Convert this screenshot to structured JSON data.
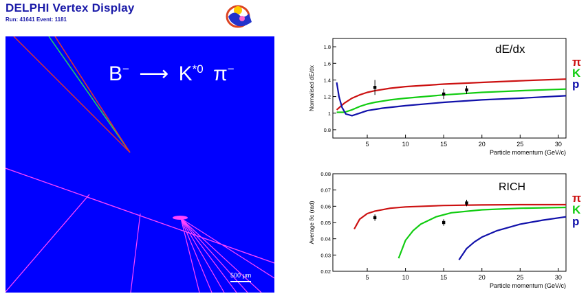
{
  "header": {
    "title": "DELPHI Vertex Display",
    "run_label": "Run:",
    "run_value": "41641",
    "event_label": "Event:",
    "event_value": "1181"
  },
  "event_display": {
    "decay_parts": {
      "B": "B",
      "B_sup": "−",
      "arrow": "⟶",
      "K": "K",
      "K_sup": "*0",
      "pi": "π",
      "pi_sup": "−"
    },
    "scale_label": "500 µm",
    "background_color": "#0000ff"
  },
  "legend": {
    "pi": "π",
    "K": "K",
    "p": "p",
    "colors": {
      "pi": "#cc1111",
      "K": "#11cc11",
      "p": "#1111aa"
    }
  },
  "chart_data": [
    {
      "type": "line",
      "title": "dE/dx",
      "xlabel": "Particle momentum (GeV/c)",
      "ylabel": "Normalised dE/dx",
      "xlim": [
        0.5,
        31
      ],
      "ylim": [
        0.7,
        1.9
      ],
      "x_ticks": [
        5,
        10,
        15,
        20,
        25,
        30
      ],
      "y_ticks": [
        0.8,
        1,
        1.2,
        1.4,
        1.6,
        1.8
      ],
      "y_tick_labels": [
        "0.8",
        "1",
        "1.2",
        "1.4",
        "1.6",
        "1.8"
      ],
      "series": [
        {
          "name": "π",
          "color": "#cc1111",
          "x": [
            1.0,
            2,
            3,
            4,
            5,
            6,
            8,
            10,
            15,
            20,
            25,
            31
          ],
          "y": [
            1.04,
            1.12,
            1.18,
            1.22,
            1.25,
            1.27,
            1.3,
            1.32,
            1.35,
            1.37,
            1.39,
            1.41
          ]
        },
        {
          "name": "K",
          "color": "#11cc11",
          "x": [
            1.0,
            2,
            3,
            4,
            5,
            6,
            8,
            10,
            15,
            20,
            25,
            31
          ],
          "y": [
            1.01,
            1.01,
            1.04,
            1.08,
            1.11,
            1.13,
            1.16,
            1.18,
            1.22,
            1.25,
            1.27,
            1.29
          ]
        },
        {
          "name": "p",
          "color": "#1111aa",
          "x": [
            1.0,
            1.3,
            1.7,
            2.2,
            3,
            4,
            5,
            7,
            10,
            15,
            20,
            25,
            31
          ],
          "y": [
            1.37,
            1.2,
            1.07,
            0.99,
            0.97,
            1.0,
            1.03,
            1.06,
            1.09,
            1.13,
            1.16,
            1.18,
            1.21
          ]
        }
      ],
      "points": [
        {
          "x": 6,
          "y": 1.31,
          "err": 0.09
        },
        {
          "x": 15,
          "y": 1.23,
          "err": 0.06
        },
        {
          "x": 18,
          "y": 1.28,
          "err": 0.05
        }
      ]
    },
    {
      "type": "line",
      "title": "RICH",
      "xlabel": "Particle momentum (GeV/c)",
      "ylabel": "Average ϑc (rad)",
      "xlim": [
        0.5,
        31
      ],
      "ylim": [
        0.02,
        0.08
      ],
      "x_ticks": [
        5,
        10,
        15,
        20,
        25,
        30
      ],
      "y_ticks": [
        0.02,
        0.03,
        0.04,
        0.05,
        0.06,
        0.07,
        0.08
      ],
      "y_tick_labels": [
        "0.02",
        "0.03",
        "0.04",
        "0.05",
        "0.06",
        "0.07",
        "0.08"
      ],
      "series": [
        {
          "name": "π",
          "color": "#cc1111",
          "x": [
            3.3,
            4,
            5,
            6,
            8,
            10,
            15,
            20,
            25,
            31
          ],
          "y": [
            0.046,
            0.052,
            0.0555,
            0.057,
            0.0588,
            0.0596,
            0.0605,
            0.0608,
            0.061,
            0.061
          ]
        },
        {
          "name": "K",
          "color": "#11cc11",
          "x": [
            9.1,
            10,
            11,
            12,
            14,
            16,
            20,
            25,
            31
          ],
          "y": [
            0.028,
            0.039,
            0.045,
            0.049,
            0.0535,
            0.056,
            0.0578,
            0.0588,
            0.0593
          ]
        },
        {
          "name": "p",
          "color": "#1111aa",
          "x": [
            17,
            18,
            19,
            20,
            22,
            25,
            28,
            31
          ],
          "y": [
            0.027,
            0.034,
            0.038,
            0.041,
            0.045,
            0.049,
            0.0515,
            0.0535
          ]
        }
      ],
      "points": [
        {
          "x": 6,
          "y": 0.053,
          "err": 0.002
        },
        {
          "x": 15,
          "y": 0.05,
          "err": 0.002
        },
        {
          "x": 18,
          "y": 0.062,
          "err": 0.002
        }
      ]
    }
  ]
}
